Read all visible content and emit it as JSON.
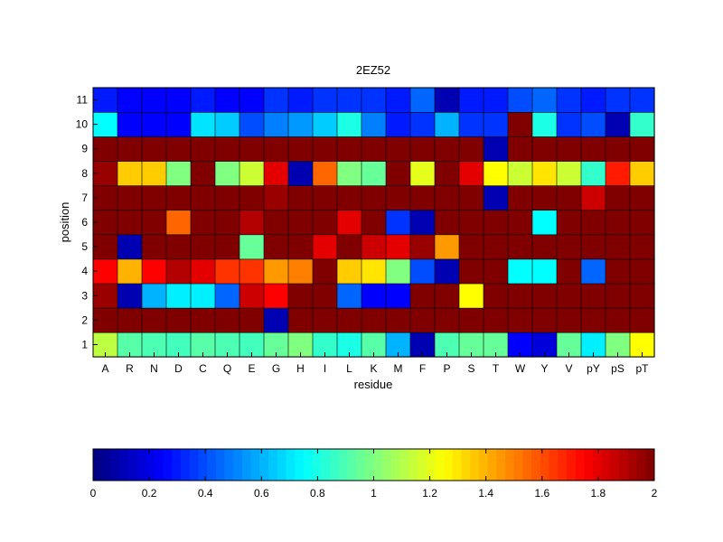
{
  "chart_data": {
    "type": "heatmap",
    "title": "2EZ52",
    "xlabel": "residue",
    "ylabel": "position",
    "x_categories": [
      "A",
      "R",
      "N",
      "D",
      "C",
      "Q",
      "E",
      "G",
      "H",
      "I",
      "L",
      "K",
      "M",
      "F",
      "P",
      "S",
      "T",
      "W",
      "Y",
      "V",
      "pY",
      "pS",
      "pT"
    ],
    "y_categories": [
      "1",
      "2",
      "3",
      "4",
      "5",
      "6",
      "7",
      "8",
      "9",
      "10",
      "11"
    ],
    "colormap": "jet",
    "clim": [
      0,
      2
    ],
    "colorbar": {
      "location": "bottom",
      "ticks": [
        "0",
        "0.2",
        "0.4",
        "0.6",
        "0.8",
        "1",
        "1.2",
        "1.4",
        "1.6",
        "1.8",
        "2"
      ]
    },
    "values": [
      [
        1.12,
        0.92,
        0.9,
        0.88,
        0.92,
        0.9,
        0.88,
        0.95,
        1.0,
        0.85,
        0.8,
        0.92,
        0.6,
        0.1,
        0.9,
        0.95,
        0.95,
        0.25,
        0.18,
        0.95,
        0.72,
        1.0,
        1.25
      ],
      [
        2.0,
        2.0,
        2.0,
        2.0,
        2.0,
        2.0,
        2.0,
        0.1,
        2.0,
        2.0,
        2.0,
        2.0,
        2.0,
        2.0,
        2.0,
        2.0,
        2.0,
        2.0,
        2.0,
        2.0,
        2.0,
        2.0,
        2.0
      ],
      [
        1.95,
        0.1,
        0.6,
        0.72,
        0.72,
        0.45,
        1.85,
        1.75,
        2.0,
        2.0,
        0.45,
        0.25,
        0.25,
        2.0,
        2.0,
        1.25,
        2.0,
        2.0,
        2.0,
        2.0,
        2.0,
        2.0,
        2.0
      ],
      [
        1.75,
        1.4,
        1.75,
        1.9,
        1.8,
        1.65,
        1.65,
        1.45,
        1.5,
        2.0,
        1.35,
        1.3,
        1.0,
        0.4,
        0.1,
        2.0,
        2.0,
        0.75,
        0.75,
        2.0,
        0.45,
        2.0,
        2.0
      ],
      [
        2.0,
        0.1,
        2.0,
        2.0,
        2.0,
        2.0,
        0.95,
        2.0,
        2.0,
        1.8,
        2.0,
        1.85,
        1.8,
        1.95,
        1.45,
        2.0,
        2.0,
        2.0,
        2.0,
        2.0,
        2.0,
        2.0,
        2.0
      ],
      [
        2.0,
        2.0,
        2.0,
        1.55,
        2.0,
        2.0,
        1.9,
        2.0,
        2.0,
        2.0,
        1.8,
        2.0,
        0.35,
        0.1,
        2.0,
        2.0,
        2.0,
        2.0,
        0.75,
        2.0,
        2.0,
        2.0,
        2.0
      ],
      [
        2.0,
        2.0,
        2.0,
        2.0,
        2.0,
        2.0,
        2.0,
        1.95,
        2.0,
        2.0,
        2.0,
        2.0,
        2.0,
        2.0,
        2.0,
        2.0,
        0.1,
        2.0,
        2.0,
        2.0,
        1.85,
        2.0,
        2.0
      ],
      [
        1.95,
        1.35,
        1.35,
        1.0,
        2.0,
        1.0,
        1.15,
        1.8,
        0.1,
        1.55,
        1.0,
        0.95,
        2.0,
        1.2,
        2.0,
        1.8,
        1.25,
        1.15,
        1.3,
        1.15,
        0.85,
        1.7,
        1.35
      ],
      [
        2.0,
        2.0,
        2.0,
        2.0,
        2.0,
        2.0,
        2.0,
        2.0,
        2.0,
        2.0,
        2.0,
        2.0,
        2.0,
        2.0,
        2.0,
        2.0,
        0.1,
        2.0,
        2.0,
        2.0,
        2.0,
        2.0,
        2.0
      ],
      [
        0.75,
        0.25,
        0.25,
        0.25,
        0.7,
        0.65,
        0.4,
        0.5,
        0.55,
        0.65,
        0.8,
        0.5,
        0.3,
        0.35,
        0.6,
        0.35,
        0.35,
        2.0,
        0.8,
        0.35,
        0.4,
        0.1,
        0.85
      ],
      [
        0.3,
        0.25,
        0.25,
        0.25,
        0.3,
        0.25,
        0.25,
        0.35,
        0.3,
        0.35,
        0.35,
        0.35,
        0.3,
        0.45,
        0.1,
        0.3,
        0.3,
        0.4,
        0.45,
        0.35,
        0.3,
        0.35,
        0.35
      ]
    ]
  }
}
